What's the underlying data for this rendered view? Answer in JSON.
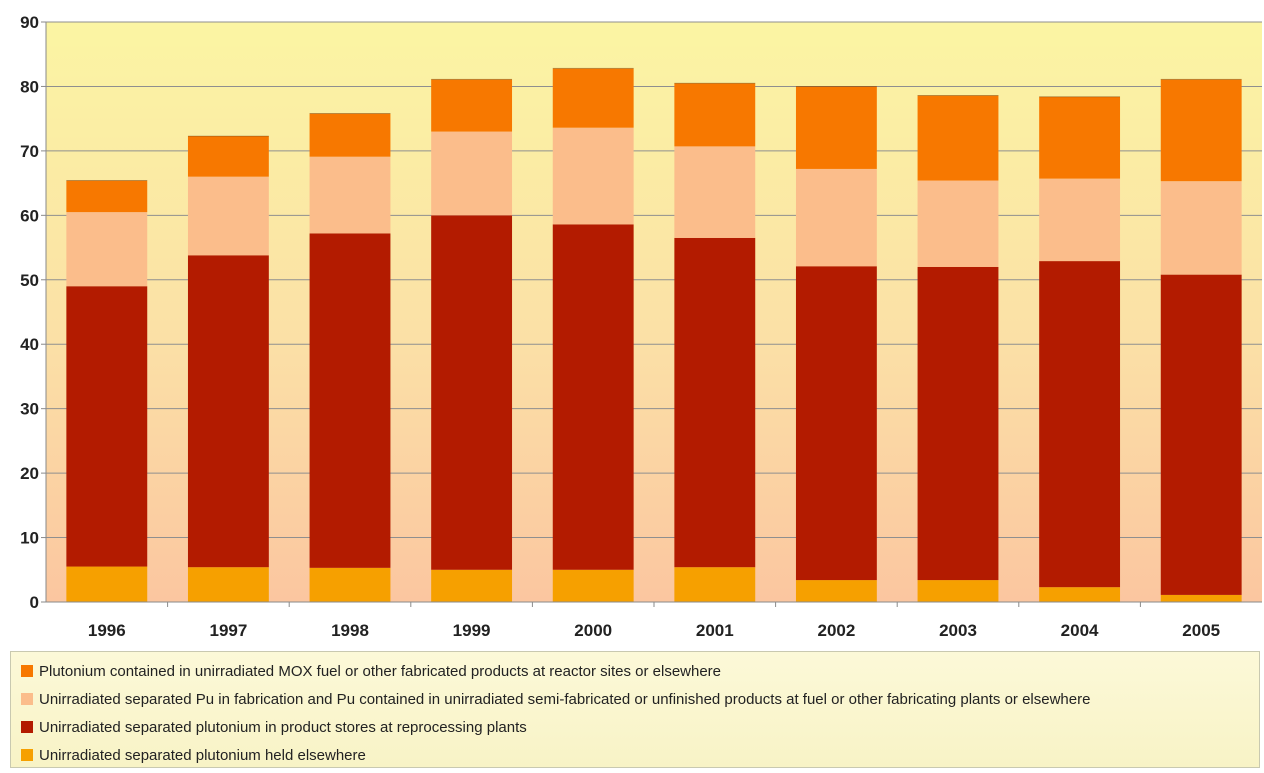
{
  "chart_data": {
    "type": "bar",
    "stacked": true,
    "categories": [
      "1996",
      "1997",
      "1998",
      "1999",
      "2000",
      "2001",
      "2002",
      "2003",
      "2004",
      "2005"
    ],
    "ylim": [
      0,
      90
    ],
    "yticks": [
      0,
      10,
      20,
      30,
      40,
      50,
      60,
      70,
      80,
      90
    ],
    "grid": true,
    "legend_position": "bottom",
    "series": [
      {
        "name": "Unirradiated separated plutonium held elsewhere",
        "color": "#f6a000",
        "values": [
          5.5,
          5.4,
          5.3,
          5.0,
          5.0,
          5.4,
          3.4,
          3.4,
          2.3,
          1.1
        ]
      },
      {
        "name": "Unirradiated separated plutonium in product stores at reprocessing plants",
        "color": "#b31b00",
        "values": [
          43.5,
          48.4,
          51.9,
          55.0,
          53.6,
          51.1,
          48.7,
          48.6,
          50.6,
          49.7
        ]
      },
      {
        "name": "Unirradiated separated Pu in fabrication and Pu contained in unirradiated semi-fabricated or unfinished products at fuel or other fabricating plants or elsewhere",
        "color": "#fbbd8b",
        "values": [
          11.5,
          12.2,
          11.9,
          13.0,
          15.0,
          14.2,
          15.1,
          13.4,
          12.8,
          14.5
        ]
      },
      {
        "name": "Plutonium contained in unirradiated MOX fuel or other fabricated products at reactor sites or elsewhere",
        "color": "#f77800",
        "values": [
          4.9,
          6.3,
          6.7,
          8.1,
          9.2,
          9.8,
          12.8,
          13.2,
          12.7,
          15.8
        ]
      }
    ],
    "legend_order": [
      3,
      2,
      1,
      0
    ]
  }
}
